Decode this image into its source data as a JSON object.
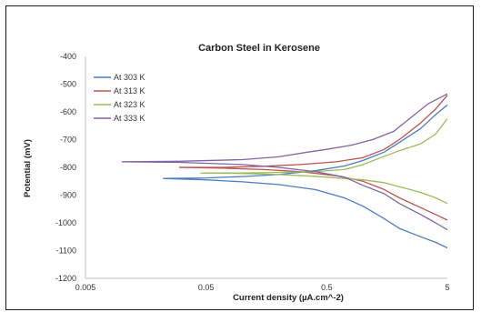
{
  "chart_data": {
    "type": "line",
    "title": "Carbon Steel in Kerosene",
    "xlabel": "Current density (µA.cm^-2)",
    "ylabel": "Potential (mV)",
    "x_scale": "log",
    "xlim": [
      0.005,
      5
    ],
    "ylim": [
      -1200,
      -400
    ],
    "x_ticks": [
      0.005,
      0.05,
      0.5,
      5
    ],
    "x_tick_labels": [
      "0.005",
      "0.05",
      "0.5",
      "5"
    ],
    "y_ticks": [
      -400,
      -500,
      -600,
      -700,
      -800,
      -900,
      -1000,
      -1100,
      -1200
    ],
    "y_tick_labels": [
      "-400",
      "-500",
      "-600",
      "-700",
      "-800",
      "-900",
      "-1000",
      "-1100",
      "-1200"
    ],
    "grid": false,
    "legend_position": "top-left",
    "series": [
      {
        "name": "At 303 K",
        "color": "#4a7ec0",
        "anodic": [
          [
            0.022,
            -840
          ],
          [
            0.05,
            -838
          ],
          [
            0.1,
            -833
          ],
          [
            0.2,
            -826
          ],
          [
            0.4,
            -812
          ],
          [
            0.7,
            -795
          ],
          [
            1.0,
            -775
          ],
          [
            1.5,
            -745
          ],
          [
            2.0,
            -710
          ],
          [
            3.0,
            -660
          ],
          [
            4.0,
            -610
          ],
          [
            5.0,
            -575
          ]
        ],
        "cathodic": [
          [
            0.022,
            -840
          ],
          [
            0.05,
            -845
          ],
          [
            0.1,
            -852
          ],
          [
            0.2,
            -862
          ],
          [
            0.4,
            -880
          ],
          [
            0.7,
            -910
          ],
          [
            1.0,
            -940
          ],
          [
            1.5,
            -985
          ],
          [
            2.0,
            -1020
          ],
          [
            3.0,
            -1050
          ],
          [
            4.0,
            -1070
          ],
          [
            5.0,
            -1090
          ]
        ]
      },
      {
        "name": "At 313 K",
        "color": "#c0504d",
        "anodic": [
          [
            0.03,
            -800
          ],
          [
            0.07,
            -800
          ],
          [
            0.15,
            -796
          ],
          [
            0.3,
            -790
          ],
          [
            0.6,
            -780
          ],
          [
            1.0,
            -765
          ],
          [
            1.5,
            -735
          ],
          [
            2.0,
            -700
          ],
          [
            3.0,
            -640
          ],
          [
            4.0,
            -590
          ],
          [
            5.0,
            -540
          ]
        ],
        "cathodic": [
          [
            0.03,
            -800
          ],
          [
            0.07,
            -803
          ],
          [
            0.15,
            -808
          ],
          [
            0.3,
            -815
          ],
          [
            0.6,
            -830
          ],
          [
            1.0,
            -850
          ],
          [
            1.5,
            -880
          ],
          [
            2.0,
            -910
          ],
          [
            3.0,
            -945
          ],
          [
            4.0,
            -970
          ],
          [
            5.0,
            -990
          ]
        ]
      },
      {
        "name": "At 323 K",
        "color": "#9bbb59",
        "anodic": [
          [
            0.045,
            -820
          ],
          [
            0.1,
            -820
          ],
          [
            0.2,
            -818
          ],
          [
            0.4,
            -815
          ],
          [
            0.7,
            -808
          ],
          [
            1.0,
            -790
          ],
          [
            1.5,
            -760
          ],
          [
            2.0,
            -740
          ],
          [
            3.0,
            -715
          ],
          [
            4.0,
            -680
          ],
          [
            5.0,
            -625
          ]
        ],
        "cathodic": [
          [
            0.045,
            -820
          ],
          [
            0.1,
            -822
          ],
          [
            0.2,
            -826
          ],
          [
            0.4,
            -832
          ],
          [
            0.7,
            -840
          ],
          [
            1.0,
            -845
          ],
          [
            1.5,
            -855
          ],
          [
            2.0,
            -870
          ],
          [
            3.0,
            -890
          ],
          [
            4.0,
            -910
          ],
          [
            5.0,
            -930
          ]
        ]
      },
      {
        "name": "At 333 K",
        "color": "#8064a2",
        "anodic": [
          [
            0.01,
            -780
          ],
          [
            0.03,
            -778
          ],
          [
            0.1,
            -772
          ],
          [
            0.2,
            -762
          ],
          [
            0.35,
            -745
          ],
          [
            0.5,
            -735
          ],
          [
            0.8,
            -720
          ],
          [
            1.2,
            -700
          ],
          [
            1.8,
            -670
          ],
          [
            2.5,
            -620
          ],
          [
            3.5,
            -570
          ],
          [
            5.0,
            -535
          ]
        ],
        "cathodic": [
          [
            0.01,
            -780
          ],
          [
            0.03,
            -782
          ],
          [
            0.1,
            -790
          ],
          [
            0.2,
            -800
          ],
          [
            0.4,
            -815
          ],
          [
            0.7,
            -835
          ],
          [
            1.0,
            -865
          ],
          [
            1.5,
            -895
          ],
          [
            2.0,
            -930
          ],
          [
            3.0,
            -970
          ],
          [
            4.0,
            -1000
          ],
          [
            5.0,
            -1025
          ]
        ]
      }
    ]
  }
}
